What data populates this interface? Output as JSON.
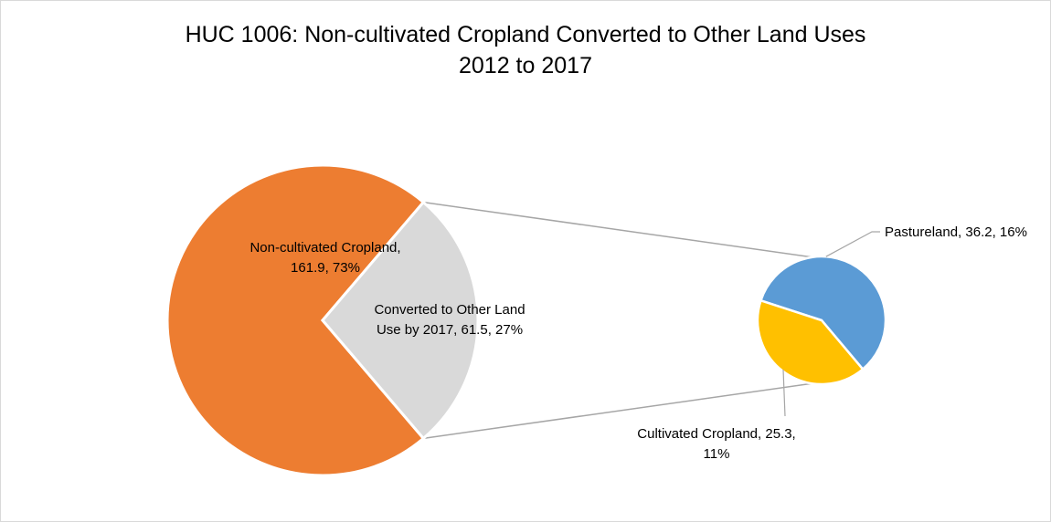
{
  "chart_data": {
    "type": "pie",
    "title_lines": [
      "HUC 1006: Non-cultivated Cropland Converted to Other Land Uses",
      "2012 to 2017"
    ],
    "main_pie": {
      "slices": [
        {
          "label_lines": [
            "Non-cultivated Cropland,",
            "161.9, 73%"
          ],
          "value": 161.9,
          "percent": 73,
          "color": "#ED7D31"
        },
        {
          "label_lines": [
            "Converted to Other Land",
            "Use by 2017, 61.5, 27%"
          ],
          "value": 61.5,
          "percent": 27,
          "color": "#D9D9D9"
        }
      ]
    },
    "secondary_pie": {
      "slices": [
        {
          "label_lines": [
            "Pastureland, 36.2, 16%"
          ],
          "value": 36.2,
          "percent": 16,
          "color": "#5B9BD5"
        },
        {
          "label_lines": [
            "Cultivated Cropland, 25.3,",
            "11%"
          ],
          "value": 25.3,
          "percent": 11,
          "color": "#FFC000"
        }
      ]
    },
    "legend": "none",
    "grid": false
  }
}
